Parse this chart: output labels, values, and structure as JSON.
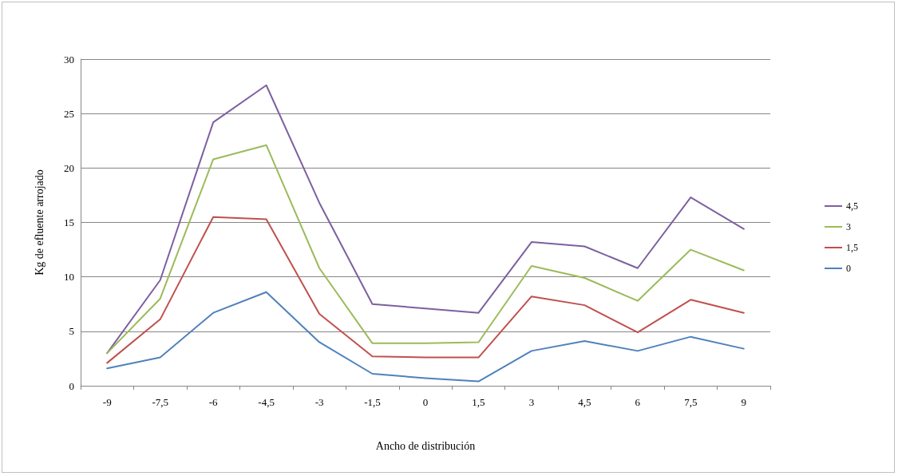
{
  "chart_data": {
    "type": "line",
    "xlabel": "Ancho de distribución",
    "ylabel": "Kg de efluente arrojado",
    "categories": [
      "-9",
      "-7,5",
      "-6",
      "-4,5",
      "-3",
      "-1,5",
      "0",
      "1,5",
      "3",
      "4,5",
      "6",
      "7,5",
      "9"
    ],
    "series": [
      {
        "name": "4,5",
        "color": "#7d60a0",
        "values": [
          3.0,
          9.7,
          24.2,
          27.6,
          16.8,
          7.5,
          7.1,
          6.7,
          13.2,
          12.8,
          10.8,
          17.3,
          14.4
        ]
      },
      {
        "name": "3",
        "color": "#9bbb59",
        "values": [
          3.0,
          8.0,
          20.8,
          22.1,
          10.8,
          3.9,
          3.9,
          4.0,
          11.0,
          9.9,
          7.8,
          12.5,
          10.6
        ]
      },
      {
        "name": "1,5",
        "color": "#c0504d",
        "values": [
          2.1,
          6.1,
          15.5,
          15.3,
          6.6,
          2.7,
          2.6,
          2.6,
          8.2,
          7.4,
          4.9,
          7.9,
          6.7
        ]
      },
      {
        "name": "0",
        "color": "#4f81bd",
        "values": [
          1.6,
          2.6,
          6.7,
          8.6,
          4.0,
          1.1,
          0.7,
          0.4,
          3.2,
          4.1,
          3.2,
          4.5,
          3.4
        ]
      }
    ],
    "ylim": [
      0,
      30
    ],
    "yticks": [
      0,
      5,
      10,
      15,
      20,
      25,
      30
    ],
    "grid": "y",
    "legend": "right",
    "marker": "none",
    "line_style": "solid"
  }
}
